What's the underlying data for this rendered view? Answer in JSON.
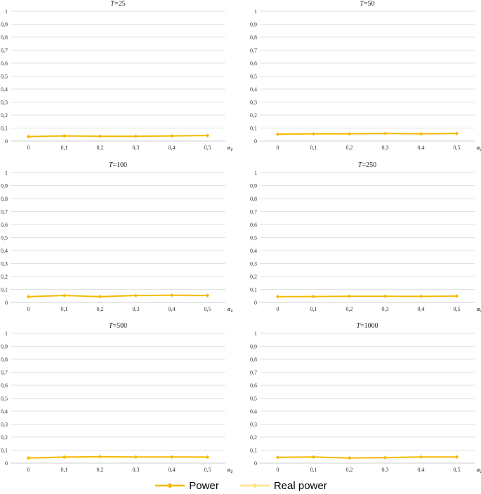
{
  "colors": {
    "power": "#F5B800",
    "real_power": "#FDE58C",
    "grid": "#D9D9D9",
    "axis": "#BFBFBF"
  },
  "chart_data": [
    {
      "type": "line",
      "title_italic": "T",
      "title_rest": "=25",
      "categories": [
        "0",
        "0,1",
        "0,2",
        "0,3",
        "0,4",
        "0,5"
      ],
      "xlabel_main": "α",
      "xlabel_sub": "1",
      "ylim": [
        0,
        1
      ],
      "yticks": [
        "0",
        "0,1",
        "0,2",
        "0,3",
        "0,4",
        "0,5",
        "0,6",
        "0,7",
        "0,8",
        "0,9",
        "1"
      ],
      "series": [
        {
          "name": "Power",
          "values": [
            0.035,
            0.04,
            0.037,
            0.037,
            0.04,
            0.043
          ]
        },
        {
          "name": "Real power",
          "values": [
            0.032,
            0.037,
            0.034,
            0.034,
            0.037,
            0.04
          ]
        }
      ]
    },
    {
      "type": "line",
      "title_italic": "T",
      "title_rest": "=50",
      "categories": [
        "0",
        "0,1",
        "0,2",
        "0,3",
        "0,4",
        "0,5"
      ],
      "xlabel_main": "α",
      "xlabel_sub": "1",
      "ylim": [
        0,
        1
      ],
      "yticks": [
        "0",
        "0,1",
        "0,2",
        "0,3",
        "0,4",
        "0,5",
        "0,6",
        "0,7",
        "0,8",
        "0,9",
        "1"
      ],
      "series": [
        {
          "name": "Power",
          "values": [
            0.053,
            0.056,
            0.056,
            0.059,
            0.056,
            0.059
          ]
        },
        {
          "name": "Real power",
          "values": [
            0.05,
            0.053,
            0.053,
            0.056,
            0.053,
            0.056
          ]
        }
      ]
    },
    {
      "type": "line",
      "title_italic": "T",
      "title_rest": "=100",
      "categories": [
        "0",
        "0,1",
        "0,2",
        "0,3",
        "0,4",
        "0,5"
      ],
      "xlabel_main": "α",
      "xlabel_sub": "1",
      "ylim": [
        0,
        1
      ],
      "yticks": [
        "0",
        "0,1",
        "0,2",
        "0,3",
        "0,4",
        "0,5",
        "0,6",
        "0,7",
        "0,8",
        "0,9",
        "1"
      ],
      "series": [
        {
          "name": "Power",
          "values": [
            0.045,
            0.054,
            0.045,
            0.054,
            0.056,
            0.054
          ]
        },
        {
          "name": "Real power",
          "values": [
            0.042,
            0.051,
            0.042,
            0.051,
            0.053,
            0.051
          ]
        }
      ]
    },
    {
      "type": "line",
      "title_italic": "T",
      "title_rest": "=250",
      "categories": [
        "0",
        "0,1",
        "0,2",
        "0,3",
        "0,4",
        "0,5"
      ],
      "xlabel_main": "α",
      "xlabel_sub": "1",
      "ylim": [
        0,
        1
      ],
      "yticks": [
        "0",
        "0,1",
        "0,2",
        "0,3",
        "0,4",
        "0,5",
        "0,6",
        "0,7",
        "0,8",
        "0,9",
        "1"
      ],
      "series": [
        {
          "name": "Power",
          "values": [
            0.045,
            0.046,
            0.048,
            0.048,
            0.047,
            0.049
          ]
        },
        {
          "name": "Real power",
          "values": [
            0.043,
            0.044,
            0.046,
            0.046,
            0.045,
            0.047
          ]
        }
      ]
    },
    {
      "type": "line",
      "title_italic": "T",
      "title_rest": "=500",
      "categories": [
        "0",
        "0,1",
        "0,2",
        "0,3",
        "0,4",
        "0,5"
      ],
      "xlabel_main": "α",
      "xlabel_sub": "1",
      "ylim": [
        0,
        1
      ],
      "yticks": [
        "0",
        "0,1",
        "0,2",
        "0,3",
        "0,4",
        "0,5",
        "0,6",
        "0,7",
        "0,8",
        "0,9",
        "1"
      ],
      "series": [
        {
          "name": "Power",
          "values": [
            0.04,
            0.047,
            0.05,
            0.048,
            0.048,
            0.047
          ]
        },
        {
          "name": "Real power",
          "values": [
            0.037,
            0.044,
            0.047,
            0.045,
            0.045,
            0.044
          ]
        }
      ]
    },
    {
      "type": "line",
      "title_italic": "T",
      "title_rest": "=1000",
      "categories": [
        "0",
        "0,1",
        "0,2",
        "0,3",
        "0,4",
        "0,5"
      ],
      "xlabel_main": "α",
      "xlabel_sub": "1",
      "ylim": [
        0,
        1
      ],
      "yticks": [
        "0",
        "0,1",
        "0,2",
        "0,3",
        "0,4",
        "0,5",
        "0,6",
        "0,7",
        "0,8",
        "0,9",
        "1"
      ],
      "series": [
        {
          "name": "Power",
          "values": [
            0.045,
            0.048,
            0.04,
            0.043,
            0.048,
            0.048
          ]
        },
        {
          "name": "Real power",
          "values": [
            0.042,
            0.045,
            0.037,
            0.04,
            0.045,
            0.045
          ]
        }
      ]
    }
  ],
  "legend": {
    "items": [
      "Power",
      "Real power"
    ],
    "placement": "bottom"
  }
}
